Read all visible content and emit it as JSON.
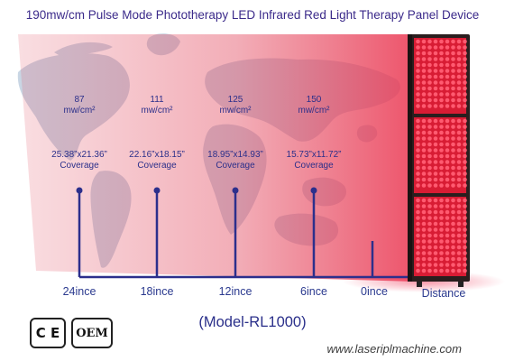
{
  "title": "190mw/cm Pulse Mode Phototherapy LED Infrared Red Light Therapy Panel Device",
  "distances": [
    {
      "label": "24ince",
      "irradiance": "87",
      "irradiance_unit": "mw/cm²",
      "coverage": "25.38”x21.36”",
      "coverage_label": "Coverage"
    },
    {
      "label": "18ince",
      "irradiance": "111",
      "irradiance_unit": "mw/cm²",
      "coverage": "22.16”x18.15”",
      "coverage_label": "Coverage"
    },
    {
      "label": "12ince",
      "irradiance": "125",
      "irradiance_unit": "mw/cm²",
      "coverage": "18.95”x14.93”",
      "coverage_label": "Coverage"
    },
    {
      "label": "6ince",
      "irradiance": "150",
      "irradiance_unit": "mw/cm²",
      "coverage": "15.73”x11.72”",
      "coverage_label": "Coverage"
    },
    {
      "label": "0ince"
    }
  ],
  "axis_label": "Distance",
  "model": "(Model-RL1000)",
  "website": "www.laseriplmachine.com",
  "badges": {
    "ce": "C E",
    "oem": "OEM"
  },
  "colors": {
    "text_blue": "#2b2f8a",
    "axis_blue": "#2c2f8c",
    "beam_red": "#e0485c",
    "panel_frame": "#2a1e1e",
    "led": "#e8203a",
    "map": "#c9d6e4"
  }
}
